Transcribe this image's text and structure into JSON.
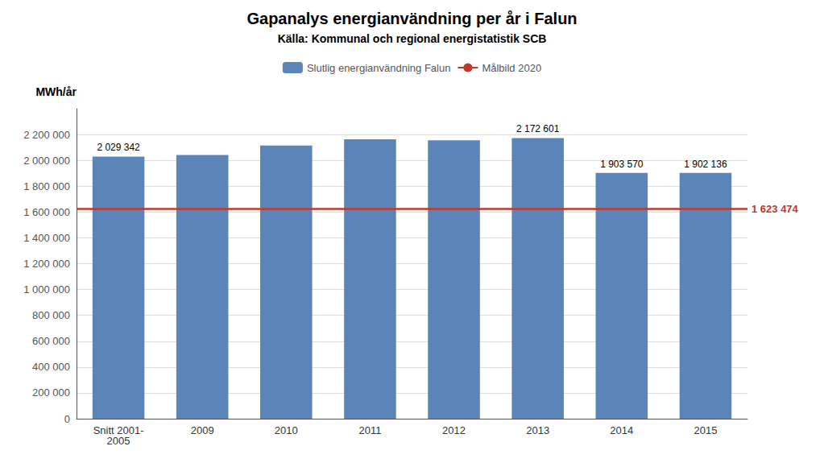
{
  "chart_data": {
    "type": "bar",
    "title": "Gapanalys energianvändning per år i Falun",
    "subtitle": "Källa: Kommunal och regional energistatistik SCB",
    "ylabel": "MWh/år",
    "categories": [
      "Snitt 2001-\n2005",
      "2009",
      "2010",
      "2011",
      "2012",
      "2013",
      "2014",
      "2015"
    ],
    "series": [
      {
        "name": "Slutlig energianvändning Falun",
        "type": "bar",
        "color": "#5b84b8",
        "values": [
          2029342,
          2042000,
          2115000,
          2163000,
          2155000,
          2172601,
          1903570,
          1902136
        ],
        "value_labels": [
          "2 029 342",
          null,
          null,
          null,
          null,
          "2 172 601",
          "1 903 570",
          "1 902 136"
        ]
      }
    ],
    "target_line": {
      "name": "Målbild 2020",
      "value": 1623474,
      "label": "1 623 474",
      "color": "#c0392b"
    },
    "ylim": [
      0,
      2400000
    ],
    "yticks": [
      0,
      {
        "value": 200000,
        "label": "200 000"
      },
      {
        "value": 400000,
        "label": "400 000"
      },
      {
        "value": 600000,
        "label": "600 000"
      },
      {
        "value": 800000,
        "label": "800 000"
      },
      {
        "value": 1000000,
        "label": "1 000 000"
      },
      {
        "value": 1200000,
        "label": "1 200 000"
      },
      {
        "value": 1400000,
        "label": "1 400 000"
      },
      {
        "value": 1600000,
        "label": "1 600 000"
      },
      {
        "value": 1800000,
        "label": "1 800 000"
      },
      {
        "value": 2000000,
        "label": "2 000 000"
      },
      {
        "value": 2200000,
        "label": "2 200 000"
      }
    ],
    "grid": true,
    "legend": "top",
    "data_labels": true
  }
}
